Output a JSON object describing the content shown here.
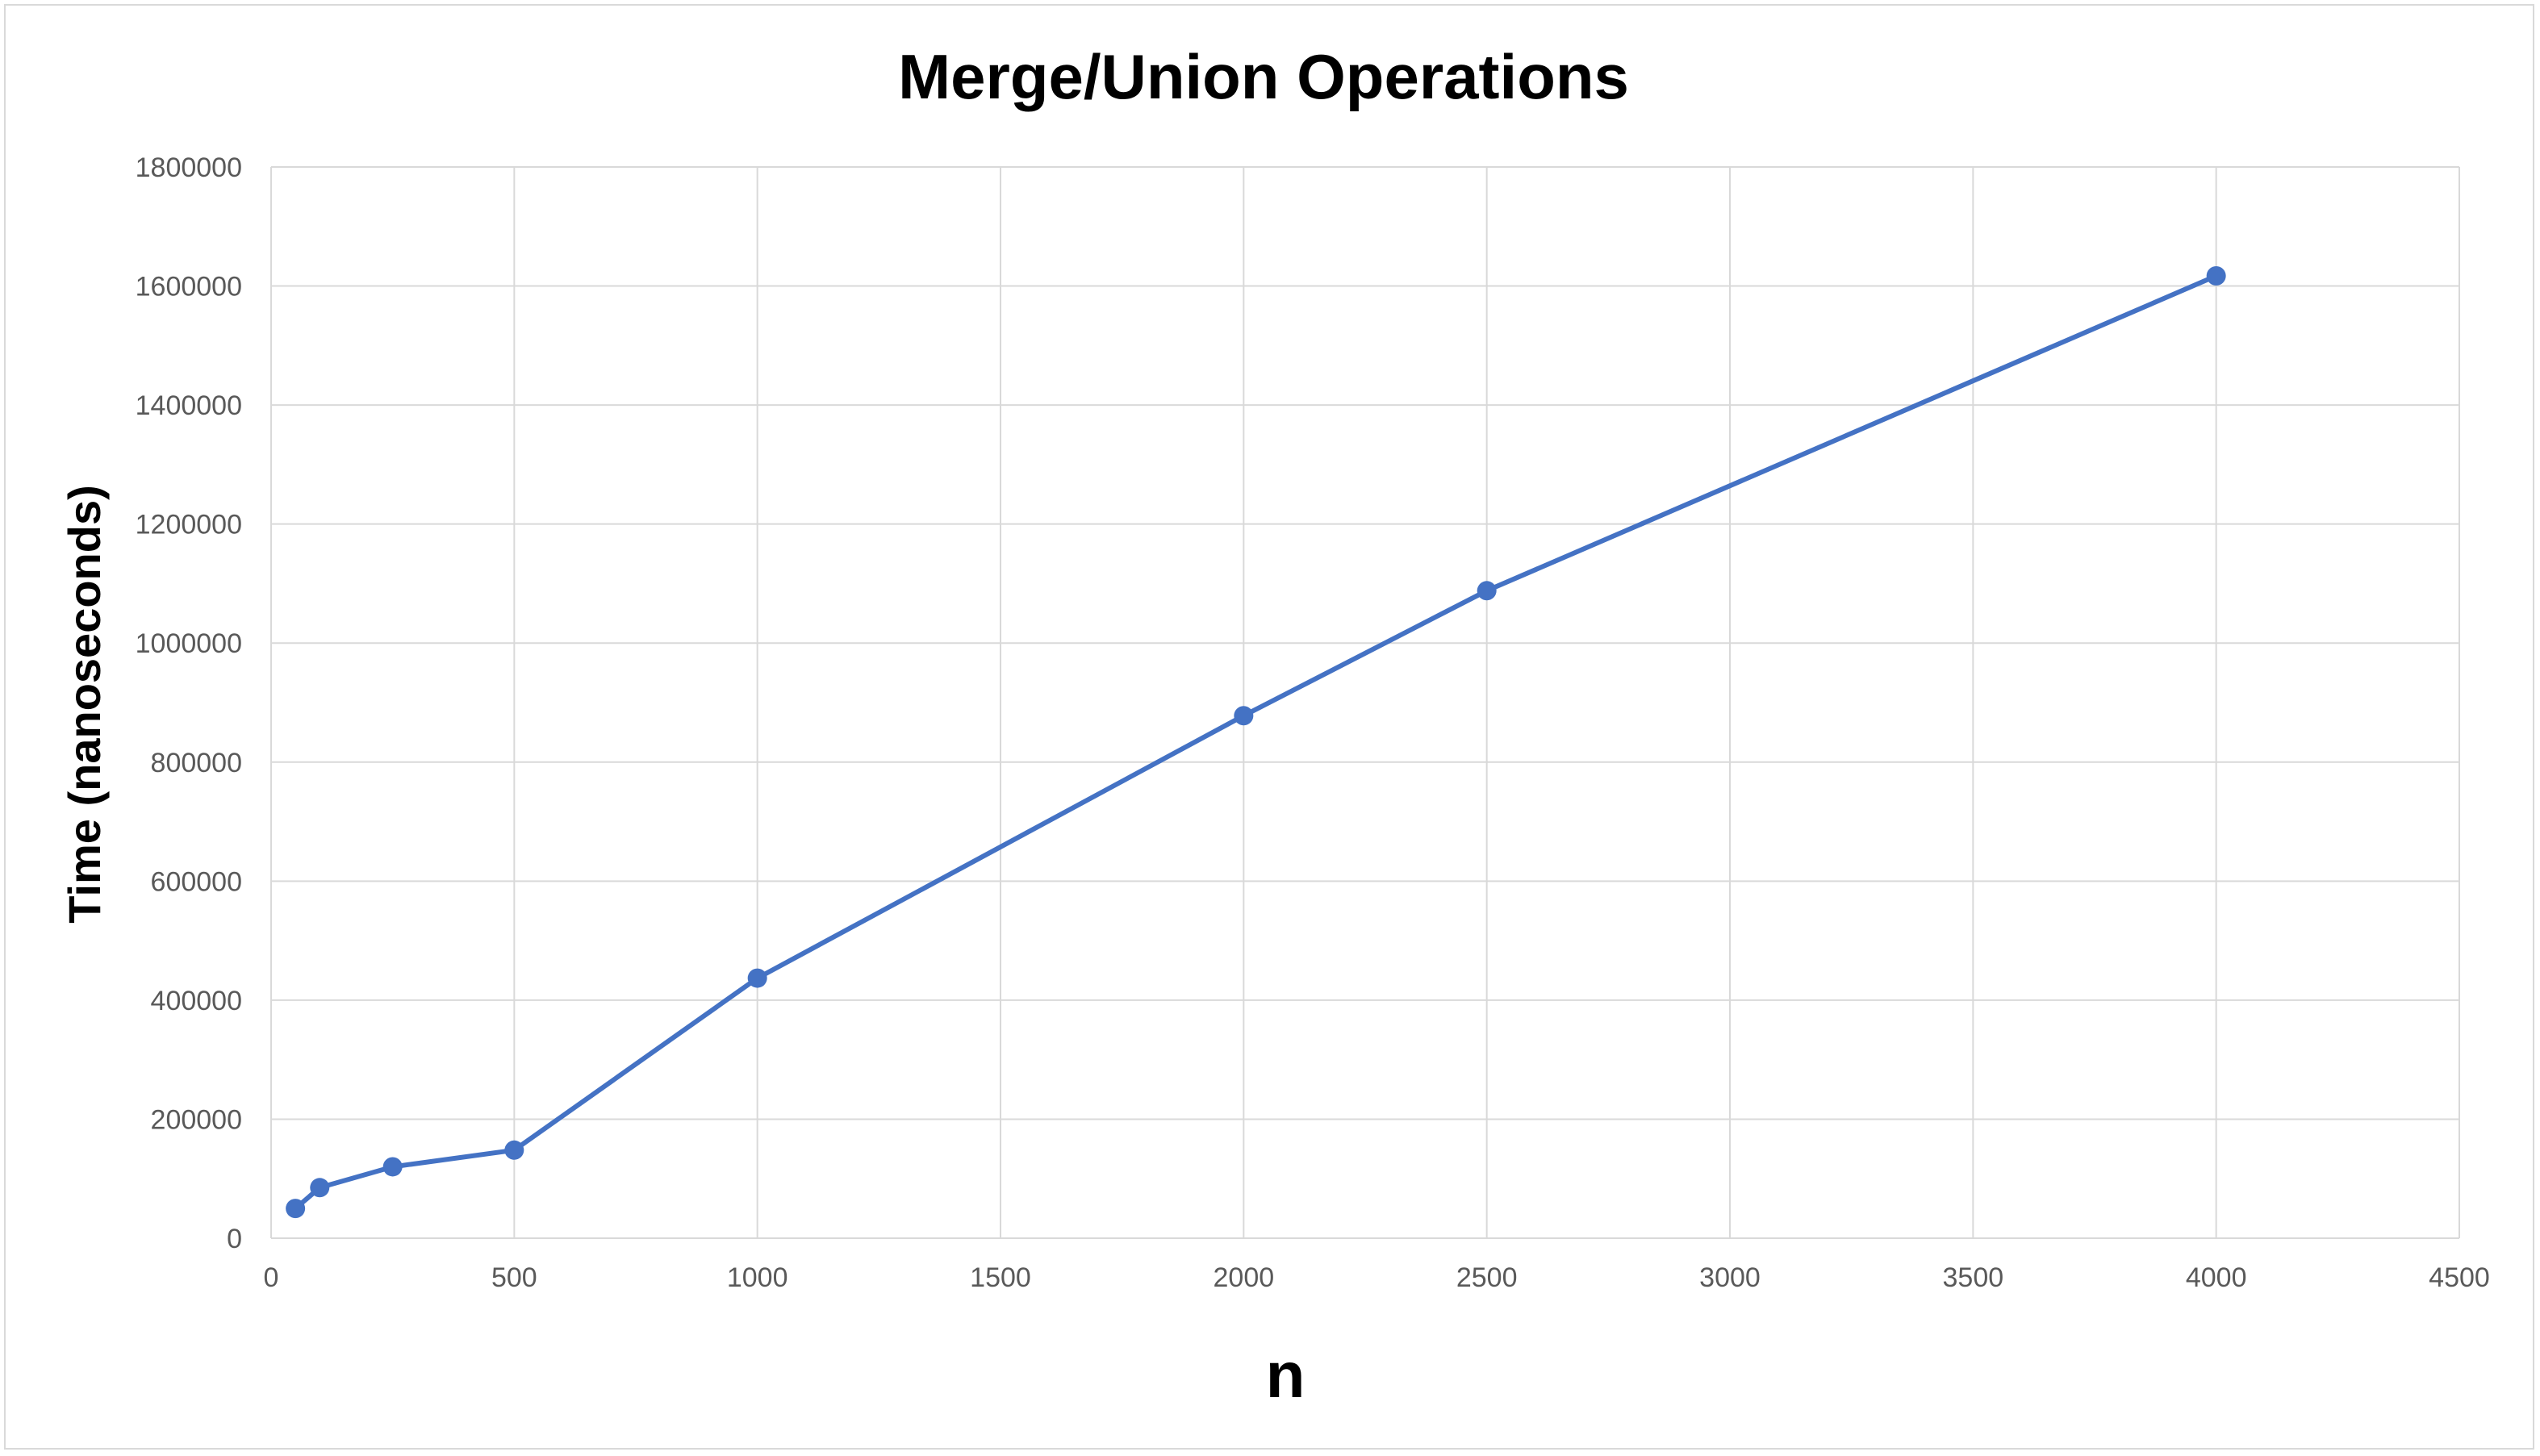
{
  "chart_data": {
    "type": "scatter",
    "title": "Merge/Union Operations",
    "xlabel": "n",
    "ylabel": "Time (nanoseconds)",
    "xlim": [
      0,
      4500
    ],
    "ylim": [
      0,
      1800000
    ],
    "x_ticks": [
      0,
      500,
      1000,
      1500,
      2000,
      2500,
      3000,
      3500,
      4000,
      4500
    ],
    "y_ticks": [
      0,
      200000,
      400000,
      600000,
      800000,
      1000000,
      1200000,
      1400000,
      1600000,
      1800000
    ],
    "x_tick_labels": [
      "0",
      "500",
      "1000",
      "1500",
      "2000",
      "2500",
      "3000",
      "3500",
      "4000",
      "4500"
    ],
    "y_tick_labels": [
      "0",
      "200000",
      "400000",
      "600000",
      "800000",
      "1000000",
      "1200000",
      "1400000",
      "1600000",
      "1800000"
    ],
    "grid": true,
    "legend": "none",
    "lines": true,
    "markers": true,
    "series": [
      {
        "color": "#4472c4",
        "x": [
          50,
          100,
          250,
          500,
          1000,
          2000,
          2500,
          4000
        ],
        "y": [
          50000,
          85000,
          120000,
          148000,
          437000,
          878000,
          1088000,
          1617000
        ]
      }
    ]
  }
}
